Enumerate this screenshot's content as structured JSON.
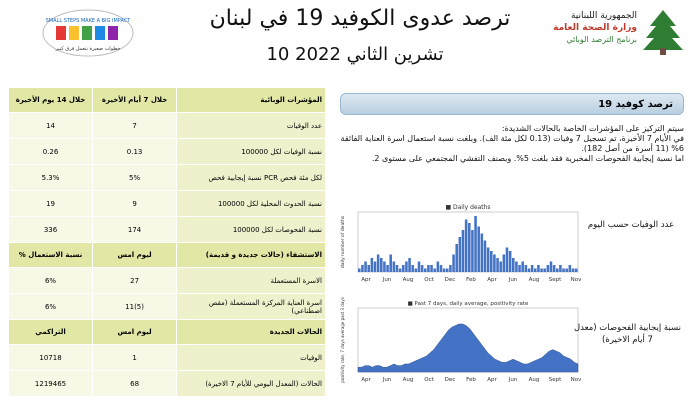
{
  "header": {
    "title": "ترصد عدوى الكوفيد 19 في لبنان",
    "date": "10 تشرين الثاني 2022",
    "ministry_line1": "الجمهورية اللبنانية",
    "ministry_line2": "وزارة الصحة العامة",
    "ministry_line3": "برنامج الترصد الوبائي",
    "logo_text": "SMALL STEPS MAKE A BIG IMPACT",
    "logo_text_ar": "خطوات صغيرة بتعمل فرق كبير"
  },
  "table": {
    "section1_headers": [
      "المؤشرات الوبائية",
      "خلال 7 أيام الأخيرة",
      "خلال 14 يوم الأخيرة"
    ],
    "section1_rows": [
      {
        "label": "عدد الوفيات",
        "v7": "7",
        "v14": "14"
      },
      {
        "label": "نسبة الوفيات لكل 100000",
        "v7": "0.13",
        "v14": "0.26"
      },
      {
        "label": "نسبة إيجابية فحص PCR لكل مئة فحص",
        "v7": "5%",
        "v14": "5.3%"
      },
      {
        "label": "نسبة الحدوث المحلية لكل 100000",
        "v7": "9",
        "v14": "19"
      },
      {
        "label": "نسبة الفحوصات لكل 100000",
        "v7": "174",
        "v14": "336"
      }
    ],
    "section2_headers": [
      "الاستشفاء (حالات جديدة و قديمة)",
      "ليوم امس",
      "% نسبة الاستعمال"
    ],
    "section2_rows": [
      {
        "label": "الاسرة المستعملة",
        "v7": "27",
        "v14": "6%"
      },
      {
        "label": "اسرة العناية المركزة المستعملة (مقص اصطناعي)",
        "v7": "11(5)",
        "v14": "6%"
      }
    ],
    "section3_headers": [
      "الحالات الجديدة",
      "ليوم امس",
      "التراكمي"
    ],
    "section3_rows": [
      {
        "label": "الوفيات",
        "v7": "1",
        "v14": "10718"
      },
      {
        "label": "الحالات (المعدل اليومي للأيام 7 الاخيرة)",
        "v7": "68",
        "v14": "1219465"
      }
    ]
  },
  "panel": {
    "heading": "ترصد كوفيد 19",
    "para1": "سيتم التركيز على المؤشرات الخاصة بالحالات الشديدة:",
    "para2": "في الأيام 7 الأخيرة، تم تسجيل 7 وفيات (0.13 لكل مئة الف). وبلغت نسبة استعمال اسرة العناية الفائقة 6% (11 أسرة من أصل 182).",
    "para3": "اما نسبة إيجابية الفحوصات المخبرية فقد بلغت 5%. وبصنف التفشي المجتمعي على مستوى 2.",
    "chart1_label": "عدد الوفيات حسب اليوم",
    "chart2_label": "نسبة إيجابية الفحوصات (معدل 7 أيام الاخيرة)"
  },
  "chart_data": [
    {
      "type": "bar",
      "series": [
        {
          "name": "Daily deaths",
          "color": "#4472c4"
        }
      ],
      "ylabel": "daily number of deaths",
      "x_labels": [
        "Apr",
        "Jun",
        "Aug",
        "Oct",
        "Dec",
        "Feb",
        "Apr",
        "Jun",
        "Aug",
        "Sept",
        "Nov"
      ],
      "values": [
        1,
        2,
        3,
        2,
        4,
        3,
        5,
        4,
        3,
        2,
        5,
        3,
        2,
        1,
        2,
        3,
        4,
        2,
        1,
        3,
        2,
        1,
        2,
        2,
        1,
        3,
        2,
        1,
        1,
        2,
        5,
        8,
        10,
        12,
        15,
        14,
        12,
        16,
        13,
        11,
        9,
        7,
        6,
        5,
        4,
        3,
        5,
        7,
        6,
        4,
        3,
        2,
        3,
        2,
        1,
        2,
        1,
        2,
        1,
        1,
        2,
        3,
        2,
        1,
        2,
        1,
        1,
        2,
        1,
        1
      ]
    },
    {
      "type": "area",
      "series": [
        {
          "name": "Past 7 days, daily average, positivity rate",
          "color": "#4472c4"
        }
      ],
      "ylabel": "positivity rate, 7 days average past 3 days",
      "x_labels": [
        "Apr",
        "Jun",
        "Aug",
        "Oct",
        "Dec",
        "Feb",
        "Apr",
        "Jun",
        "Aug",
        "Sept",
        "Nov"
      ],
      "ylim": [
        0,
        40
      ],
      "values": [
        3,
        3,
        4,
        4,
        3,
        4,
        4,
        3,
        3,
        4,
        5,
        4,
        4,
        5,
        5,
        6,
        7,
        8,
        9,
        10,
        12,
        14,
        17,
        20,
        23,
        26,
        28,
        29,
        30,
        30,
        29,
        27,
        24,
        21,
        18,
        15,
        12,
        10,
        8,
        7,
        6,
        6,
        7,
        8,
        7,
        6,
        5,
        5,
        6,
        7,
        8,
        9,
        11,
        13,
        14,
        13,
        12,
        10,
        9,
        8,
        6,
        5
      ]
    }
  ]
}
